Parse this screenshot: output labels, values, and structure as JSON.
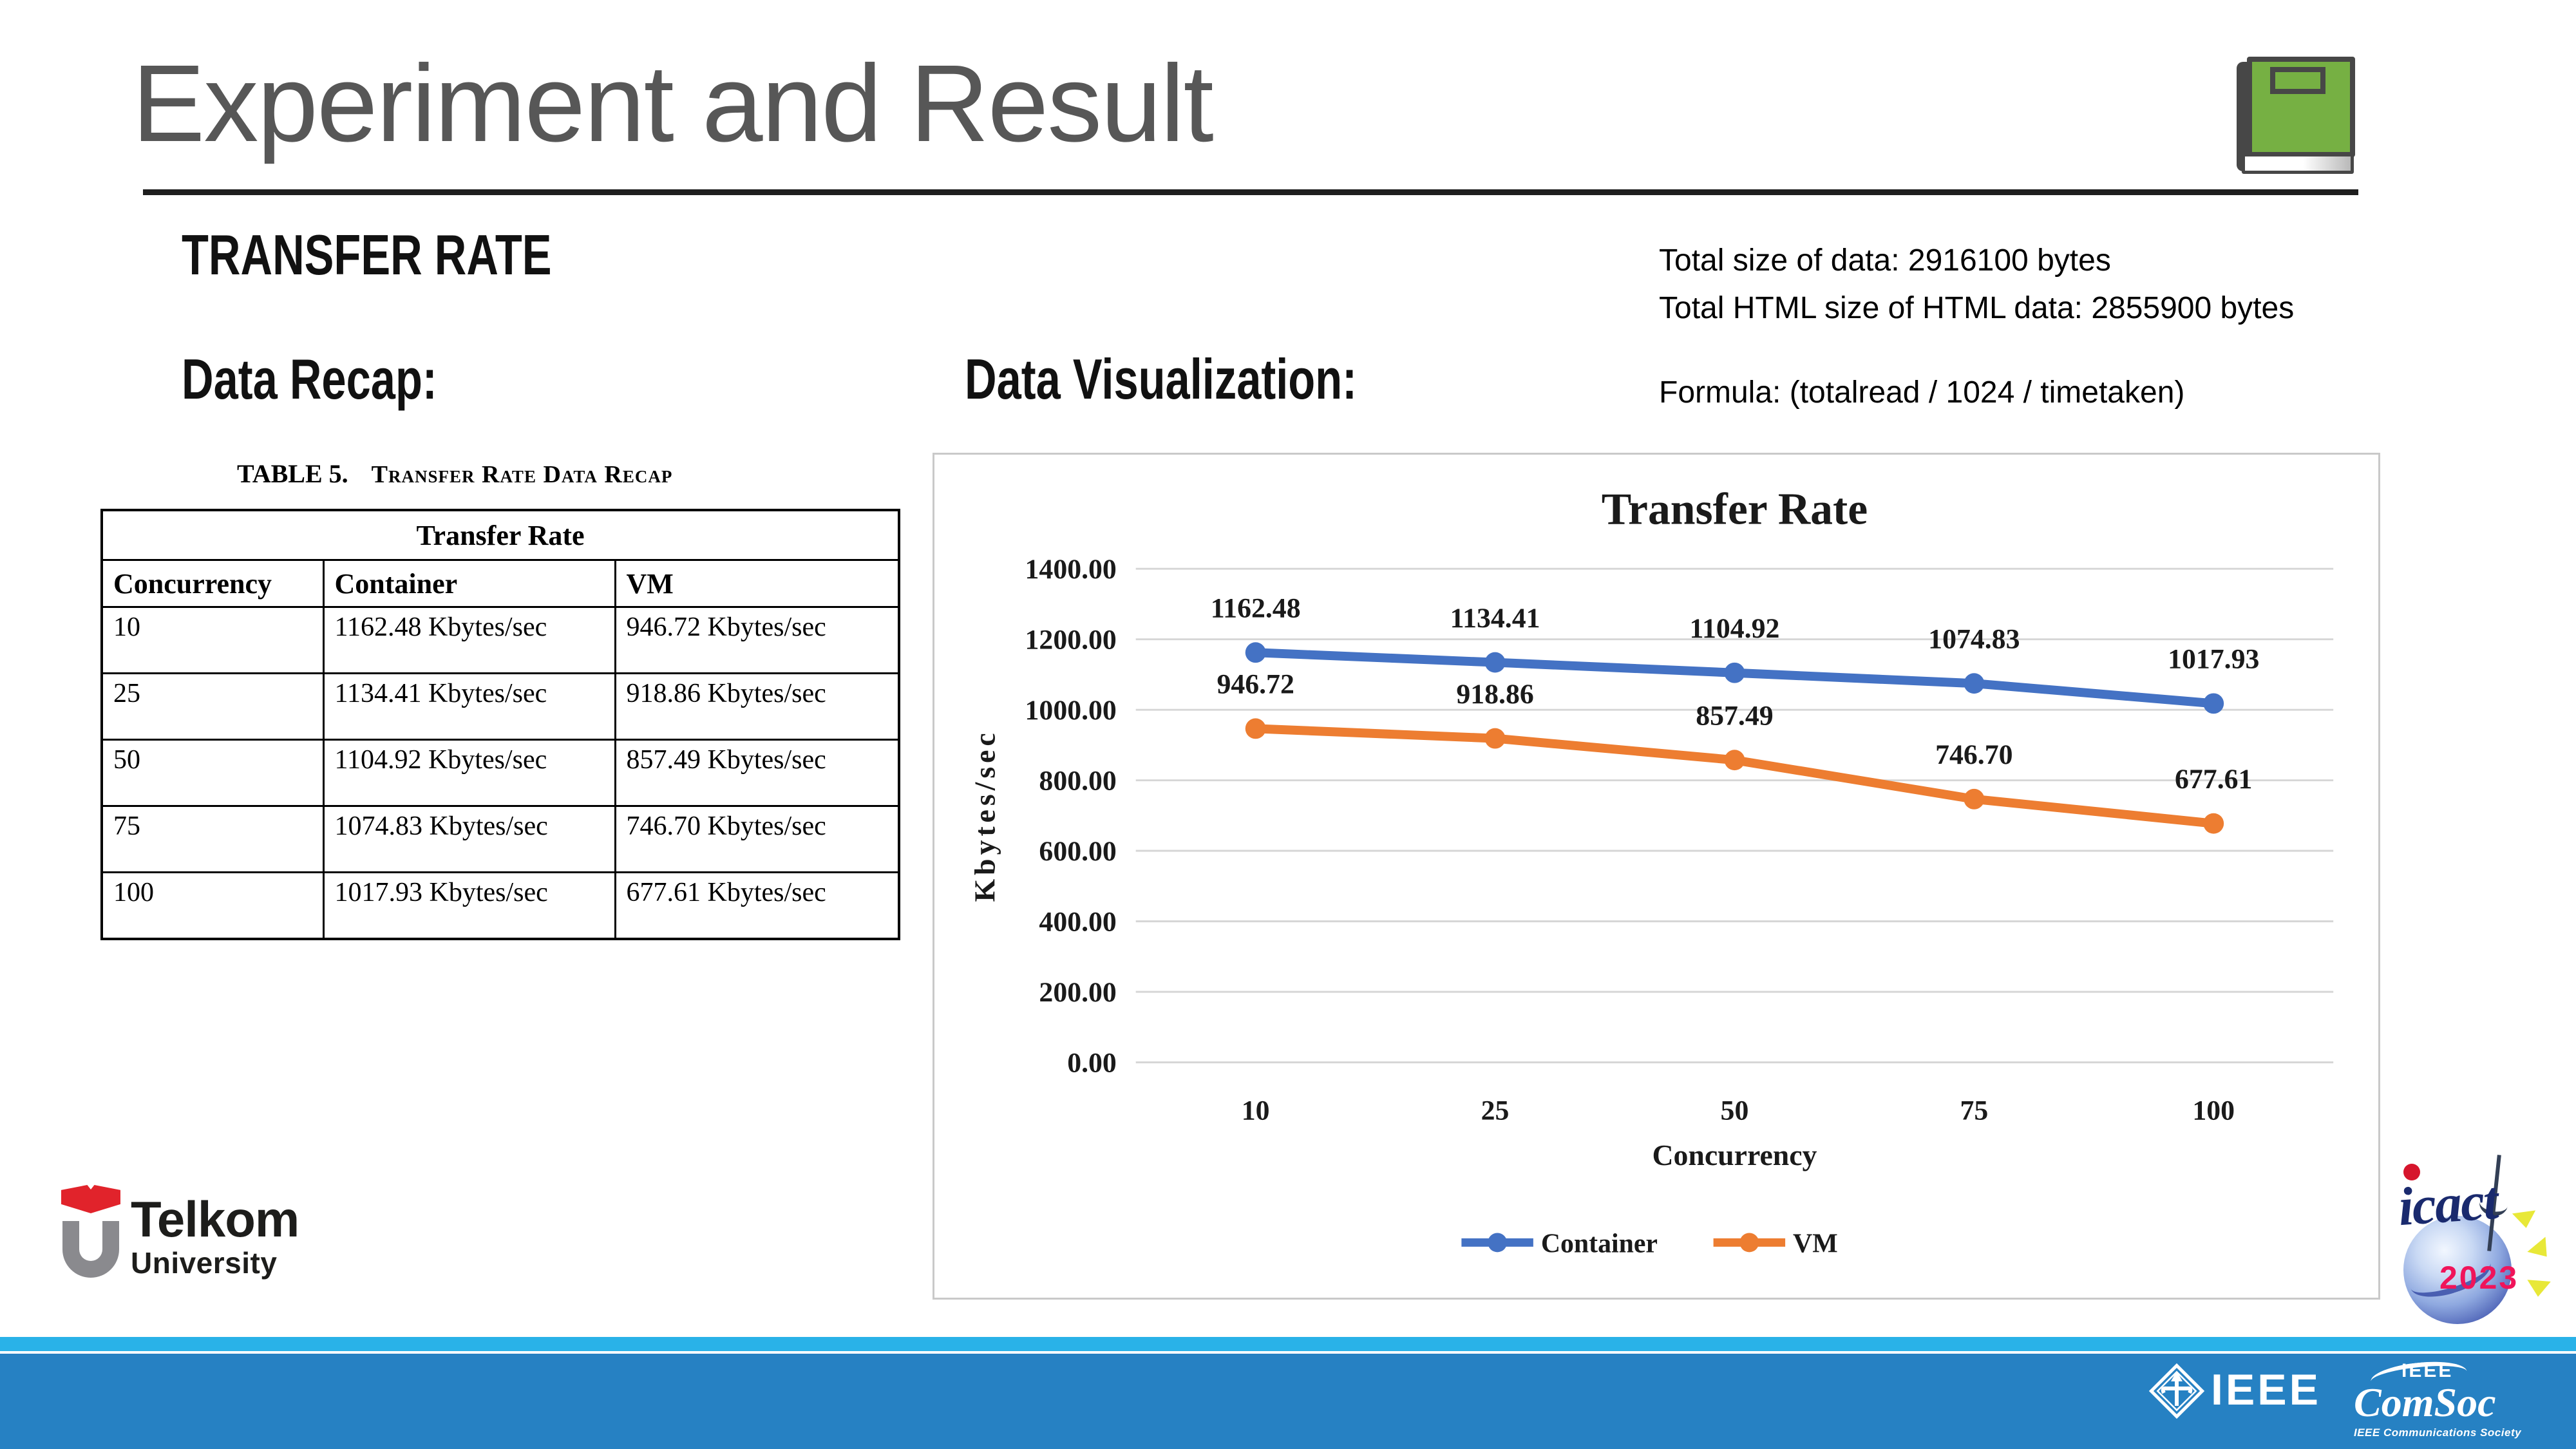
{
  "slide": {
    "title": "Experiment and Result",
    "section_heading": "TRANSFER RATE",
    "data_recap_label": "Data Recap:",
    "data_visualization_label": "Data Visualization:",
    "info": {
      "line1": "Total size of data: 2916100 bytes",
      "line2": "Total HTML size of HTML data: 2855900 bytes",
      "formula": "Formula: (totalread / 1024 / timetaken)"
    }
  },
  "table": {
    "caption_label": "TABLE 5.",
    "caption_text": "Transfer Rate Data Recap",
    "group_header": "Transfer Rate",
    "columns": [
      "Concurrency",
      "Container",
      "VM"
    ],
    "rows": [
      [
        "10",
        "1162.48 Kbytes/sec",
        "946.72 Kbytes/sec"
      ],
      [
        "25",
        "1134.41 Kbytes/sec",
        "918.86 Kbytes/sec"
      ],
      [
        "50",
        "1104.92 Kbytes/sec",
        "857.49 Kbytes/sec"
      ],
      [
        "75",
        "1074.83 Kbytes/sec",
        "746.70 Kbytes/sec"
      ],
      [
        "100",
        "1017.93 Kbytes/sec",
        "677.61 Kbytes/sec"
      ]
    ]
  },
  "chart_data": {
    "type": "line",
    "title": "Transfer Rate",
    "xlabel": "Concurrency",
    "ylabel": "Kbytes/sec",
    "categories": [
      "10",
      "25",
      "50",
      "75",
      "100"
    ],
    "series": [
      {
        "name": "Container",
        "color": "#4472C4",
        "values": [
          1162.48,
          1134.41,
          1104.92,
          1074.83,
          1017.93
        ]
      },
      {
        "name": "VM",
        "color": "#ED7D31",
        "values": [
          946.72,
          918.86,
          857.49,
          746.7,
          677.61
        ]
      }
    ],
    "ylim": [
      0,
      1400
    ],
    "ytick_step": 200,
    "grid": true,
    "legend_position": "bottom",
    "data_labels": true
  },
  "logos": {
    "telkom": {
      "line1": "Telkom",
      "line2": "University"
    },
    "icact": {
      "text": "icact",
      "year": "2023"
    },
    "ieee": {
      "wordmark": "IEEE"
    },
    "comsoc": {
      "top": "IEEE",
      "main": "ComSoc",
      "sub": "IEEE Communications Society"
    }
  },
  "colors": {
    "container_series": "#4472C4",
    "vm_series": "#ED7D31",
    "footer_light_blue": "#29B2E8",
    "footer_dark_blue": "#2681C3",
    "book_icon_green": "#76B043",
    "telkom_red": "#E1232B",
    "title_gray": "#575757",
    "gridline_gray": "#D6D6D6"
  }
}
